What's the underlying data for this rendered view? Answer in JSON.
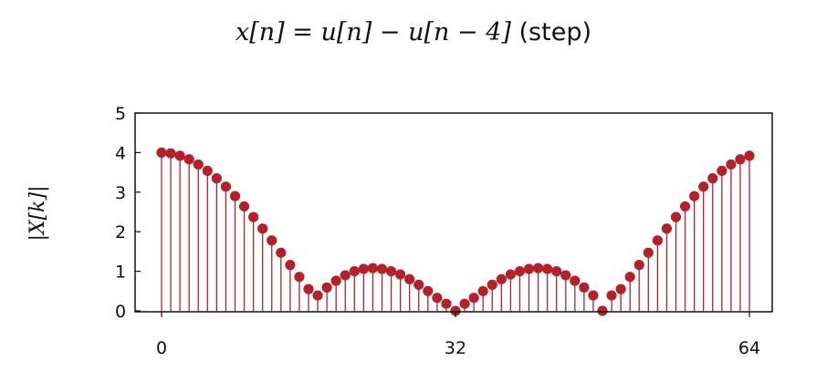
{
  "chart_data": {
    "type": "stem",
    "title_math": "x[n] = u[n] − u[n − 4]",
    "title_note": "(step)",
    "ylabel": "|X[k]|",
    "xlim": [
      0,
      64
    ],
    "ylim": [
      0,
      5
    ],
    "x_ticks": [
      "0",
      "32",
      "64"
    ],
    "y_ticks": [
      "0",
      "1",
      "2",
      "3",
      "4",
      "5"
    ],
    "grid": false,
    "color": "#b5212b",
    "x": [
      0,
      1,
      2,
      3,
      4,
      5,
      6,
      7,
      8,
      9,
      10,
      11,
      12,
      13,
      14,
      15,
      16,
      17,
      18,
      19,
      20,
      21,
      22,
      23,
      24,
      25,
      26,
      27,
      28,
      29,
      30,
      31,
      32,
      33,
      34,
      35,
      36,
      37,
      38,
      39,
      40,
      41,
      42,
      43,
      44,
      45,
      46,
      47,
      48,
      49,
      50,
      51,
      52,
      53,
      54,
      55,
      56,
      57,
      58,
      59,
      60,
      61,
      62,
      63,
      64
    ],
    "values": [
      4.0,
      3.98,
      3.92,
      3.83,
      3.7,
      3.54,
      3.35,
      3.14,
      2.9,
      2.64,
      2.37,
      2.08,
      1.78,
      1.47,
      1.16,
      0.86,
      0.55,
      0.39,
      0.59,
      0.76,
      0.9,
      1.0,
      1.06,
      1.08,
      1.06,
      1.0,
      0.92,
      0.8,
      0.66,
      0.5,
      0.33,
      0.18,
      0.0,
      0.18,
      0.33,
      0.5,
      0.66,
      0.8,
      0.92,
      1.0,
      1.06,
      1.08,
      1.06,
      1.0,
      0.9,
      0.76,
      0.59,
      0.39,
      0.0,
      0.39,
      0.55,
      0.86,
      1.16,
      1.47,
      1.78,
      2.08,
      2.37,
      2.64,
      2.9,
      3.14,
      3.35,
      3.54,
      3.7,
      3.83,
      3.92
    ]
  }
}
